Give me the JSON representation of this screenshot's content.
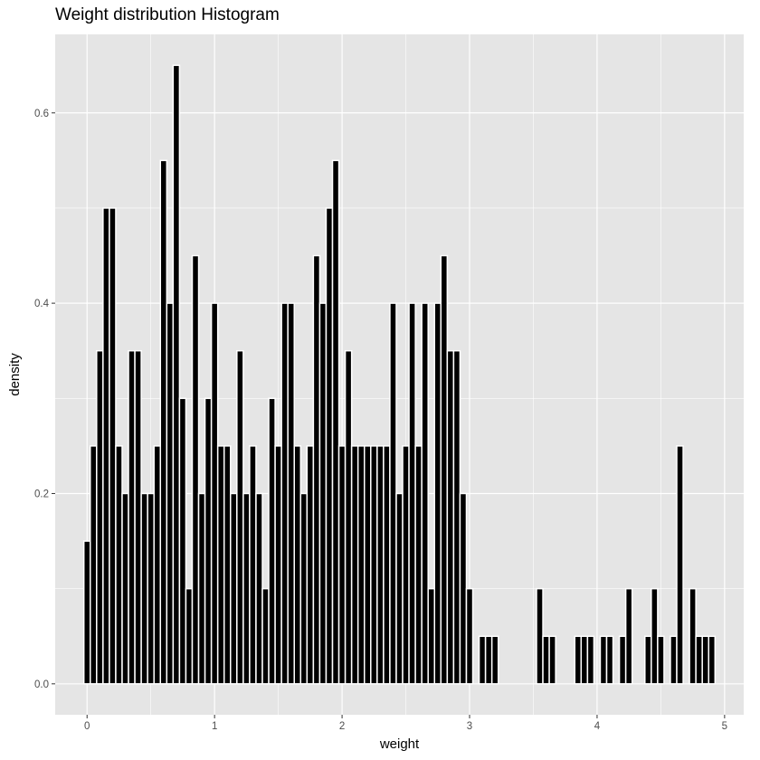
{
  "chart_data": {
    "type": "bar",
    "title": "Weight distribution Histogram",
    "xlabel": "weight",
    "ylabel": "density",
    "xlim": [
      -0.25,
      5.15
    ],
    "ylim": [
      -0.0325,
      0.6825
    ],
    "x_ticks": [
      0,
      1,
      2,
      3,
      4,
      5
    ],
    "x_tick_labels": [
      "0",
      "1",
      "2",
      "3",
      "4",
      "5"
    ],
    "y_ticks": [
      0.0,
      0.2,
      0.4,
      0.6
    ],
    "y_tick_labels": [
      "0.0",
      "0.2",
      "0.4",
      "0.6"
    ],
    "binwidth": 0.05,
    "grid": true,
    "colors": {
      "panel": "#e5e5e5",
      "grid": "#ffffff",
      "bar_fill": "#000000",
      "bar_outline": "#ffffff"
    },
    "bins": [
      {
        "x": 0.0,
        "y": 0.15
      },
      {
        "x": 0.05,
        "y": 0.25
      },
      {
        "x": 0.1,
        "y": 0.35
      },
      {
        "x": 0.15,
        "y": 0.5
      },
      {
        "x": 0.2,
        "y": 0.5
      },
      {
        "x": 0.25,
        "y": 0.25
      },
      {
        "x": 0.3,
        "y": 0.2
      },
      {
        "x": 0.35,
        "y": 0.35
      },
      {
        "x": 0.4,
        "y": 0.35
      },
      {
        "x": 0.45,
        "y": 0.2
      },
      {
        "x": 0.5,
        "y": 0.2
      },
      {
        "x": 0.55,
        "y": 0.25
      },
      {
        "x": 0.6,
        "y": 0.55
      },
      {
        "x": 0.65,
        "y": 0.4
      },
      {
        "x": 0.7,
        "y": 0.65
      },
      {
        "x": 0.75,
        "y": 0.3
      },
      {
        "x": 0.8,
        "y": 0.1
      },
      {
        "x": 0.85,
        "y": 0.45
      },
      {
        "x": 0.9,
        "y": 0.2
      },
      {
        "x": 0.95,
        "y": 0.3
      },
      {
        "x": 1.0,
        "y": 0.4
      },
      {
        "x": 1.05,
        "y": 0.25
      },
      {
        "x": 1.1,
        "y": 0.25
      },
      {
        "x": 1.15,
        "y": 0.2
      },
      {
        "x": 1.2,
        "y": 0.35
      },
      {
        "x": 1.25,
        "y": 0.2
      },
      {
        "x": 1.3,
        "y": 0.25
      },
      {
        "x": 1.35,
        "y": 0.2
      },
      {
        "x": 1.4,
        "y": 0.1
      },
      {
        "x": 1.45,
        "y": 0.3
      },
      {
        "x": 1.5,
        "y": 0.25
      },
      {
        "x": 1.55,
        "y": 0.4
      },
      {
        "x": 1.6,
        "y": 0.4
      },
      {
        "x": 1.65,
        "y": 0.25
      },
      {
        "x": 1.7,
        "y": 0.2
      },
      {
        "x": 1.75,
        "y": 0.25
      },
      {
        "x": 1.8,
        "y": 0.45
      },
      {
        "x": 1.85,
        "y": 0.4
      },
      {
        "x": 1.9,
        "y": 0.5
      },
      {
        "x": 1.95,
        "y": 0.55
      },
      {
        "x": 2.0,
        "y": 0.25
      },
      {
        "x": 2.05,
        "y": 0.35
      },
      {
        "x": 2.1,
        "y": 0.25
      },
      {
        "x": 2.15,
        "y": 0.25
      },
      {
        "x": 2.2,
        "y": 0.25
      },
      {
        "x": 2.25,
        "y": 0.25
      },
      {
        "x": 2.3,
        "y": 0.25
      },
      {
        "x": 2.35,
        "y": 0.25
      },
      {
        "x": 2.4,
        "y": 0.4
      },
      {
        "x": 2.45,
        "y": 0.2
      },
      {
        "x": 2.5,
        "y": 0.25
      },
      {
        "x": 2.55,
        "y": 0.4
      },
      {
        "x": 2.6,
        "y": 0.25
      },
      {
        "x": 2.65,
        "y": 0.4
      },
      {
        "x": 2.7,
        "y": 0.1
      },
      {
        "x": 2.75,
        "y": 0.4
      },
      {
        "x": 2.8,
        "y": 0.45
      },
      {
        "x": 2.85,
        "y": 0.35
      },
      {
        "x": 2.9,
        "y": 0.35
      },
      {
        "x": 2.95,
        "y": 0.2
      },
      {
        "x": 3.0,
        "y": 0.1
      },
      {
        "x": 3.05,
        "y": 0.0
      },
      {
        "x": 3.1,
        "y": 0.05
      },
      {
        "x": 3.15,
        "y": 0.05
      },
      {
        "x": 3.2,
        "y": 0.05
      },
      {
        "x": 3.25,
        "y": 0.0
      },
      {
        "x": 3.3,
        "y": 0.0
      },
      {
        "x": 3.35,
        "y": 0.0
      },
      {
        "x": 3.4,
        "y": 0.0
      },
      {
        "x": 3.45,
        "y": 0.0
      },
      {
        "x": 3.5,
        "y": 0.0
      },
      {
        "x": 3.55,
        "y": 0.1
      },
      {
        "x": 3.6,
        "y": 0.05
      },
      {
        "x": 3.65,
        "y": 0.05
      },
      {
        "x": 3.7,
        "y": 0.0
      },
      {
        "x": 3.75,
        "y": 0.0
      },
      {
        "x": 3.8,
        "y": 0.0
      },
      {
        "x": 3.85,
        "y": 0.05
      },
      {
        "x": 3.9,
        "y": 0.05
      },
      {
        "x": 3.95,
        "y": 0.05
      },
      {
        "x": 4.0,
        "y": 0.0
      },
      {
        "x": 4.05,
        "y": 0.05
      },
      {
        "x": 4.1,
        "y": 0.05
      },
      {
        "x": 4.15,
        "y": 0.0
      },
      {
        "x": 4.2,
        "y": 0.05
      },
      {
        "x": 4.25,
        "y": 0.1
      },
      {
        "x": 4.3,
        "y": 0.0
      },
      {
        "x": 4.35,
        "y": 0.0
      },
      {
        "x": 4.4,
        "y": 0.05
      },
      {
        "x": 4.45,
        "y": 0.1
      },
      {
        "x": 4.5,
        "y": 0.05
      },
      {
        "x": 4.55,
        "y": 0.0
      },
      {
        "x": 4.6,
        "y": 0.05
      },
      {
        "x": 4.65,
        "y": 0.25
      },
      {
        "x": 4.7,
        "y": 0.0
      },
      {
        "x": 4.75,
        "y": 0.1
      },
      {
        "x": 4.8,
        "y": 0.05
      },
      {
        "x": 4.85,
        "y": 0.05
      },
      {
        "x": 4.9,
        "y": 0.05
      }
    ]
  }
}
